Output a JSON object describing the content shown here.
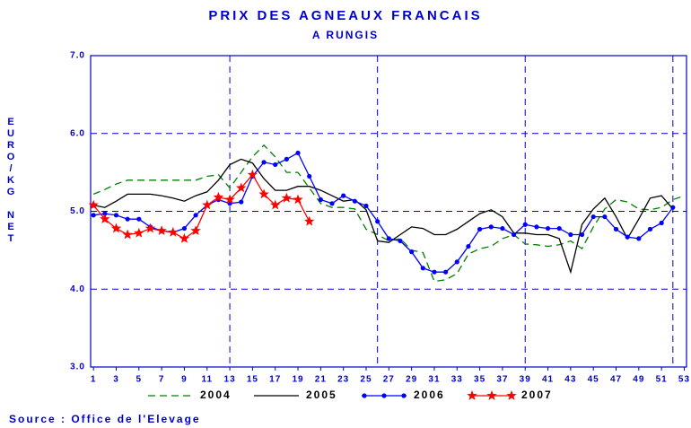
{
  "chart_data": {
    "type": "line",
    "title": "PRIX DES AGNEAUX FRANCAIS",
    "subtitle": "A RUNGIS",
    "y_label": "EURO/KG NET",
    "source": "Source : Office de l'Elevage",
    "x": [
      1,
      2,
      3,
      4,
      5,
      6,
      7,
      8,
      9,
      10,
      11,
      12,
      13,
      14,
      15,
      16,
      17,
      18,
      19,
      20,
      21,
      22,
      23,
      24,
      25,
      26,
      27,
      28,
      29,
      30,
      31,
      32,
      33,
      34,
      35,
      36,
      37,
      38,
      39,
      40,
      41,
      42,
      43,
      44,
      45,
      46,
      47,
      48,
      49,
      50,
      51,
      52,
      53
    ],
    "xlim": [
      0.75,
      53.2
    ],
    "xticks": [
      1,
      3,
      5,
      7,
      9,
      11,
      13,
      15,
      17,
      19,
      21,
      23,
      25,
      27,
      29,
      31,
      33,
      35,
      37,
      39,
      41,
      43,
      45,
      47,
      49,
      51,
      53
    ],
    "xgrid": [
      13,
      26,
      39,
      52
    ],
    "ylim": [
      3,
      7
    ],
    "yticks": [
      {
        "value": 3,
        "label": "3.0"
      },
      {
        "value": 4,
        "label": "4.0"
      },
      {
        "value": 5,
        "label": "5.0"
      },
      {
        "value": 6,
        "label": "6.0"
      },
      {
        "value": 7,
        "label": "7.0"
      }
    ],
    "grid": true,
    "series": [
      {
        "name": "2004",
        "color": "#008000",
        "dash": true,
        "marker": null,
        "values": [
          5.22,
          5.28,
          5.35,
          5.4,
          5.4,
          5.4,
          5.4,
          5.4,
          5.4,
          5.4,
          5.45,
          5.47,
          5.3,
          5.5,
          5.7,
          5.85,
          5.7,
          5.5,
          5.5,
          5.3,
          5.1,
          5.05,
          5.05,
          5.03,
          4.77,
          4.7,
          4.62,
          4.65,
          4.5,
          4.47,
          4.1,
          4.12,
          4.2,
          4.45,
          4.52,
          4.55,
          4.65,
          4.7,
          4.58,
          4.57,
          4.55,
          4.57,
          4.62,
          4.52,
          4.8,
          5.03,
          5.15,
          5.12,
          5.03,
          5.02,
          5.05,
          5.15,
          5.2
        ]
      },
      {
        "name": "2005",
        "color": "#000000",
        "dash": false,
        "marker": null,
        "values": [
          5.08,
          5.05,
          5.13,
          5.22,
          5.22,
          5.22,
          5.2,
          5.17,
          5.13,
          5.2,
          5.25,
          5.4,
          5.6,
          5.67,
          5.62,
          5.42,
          5.27,
          5.27,
          5.32,
          5.32,
          5.27,
          5.2,
          5.13,
          5.15,
          5.02,
          4.62,
          4.6,
          4.7,
          4.8,
          4.78,
          4.7,
          4.7,
          4.77,
          4.87,
          4.97,
          5.02,
          4.93,
          4.72,
          4.72,
          4.7,
          4.7,
          4.65,
          4.22,
          4.83,
          5.03,
          5.17,
          4.93,
          4.65,
          4.9,
          5.17,
          5.2,
          5.03,
          null
        ]
      },
      {
        "name": "2006",
        "color": "#0000ff",
        "dash": false,
        "marker": "circle",
        "values": [
          4.95,
          4.97,
          4.95,
          4.9,
          4.9,
          4.8,
          4.75,
          4.73,
          4.78,
          4.95,
          5.08,
          5.15,
          5.1,
          5.12,
          5.45,
          5.63,
          5.6,
          5.67,
          5.75,
          5.45,
          5.15,
          5.1,
          5.2,
          5.13,
          5.07,
          4.87,
          4.65,
          4.62,
          4.48,
          4.27,
          4.22,
          4.22,
          4.35,
          4.55,
          4.77,
          4.8,
          4.78,
          4.7,
          4.83,
          4.8,
          4.78,
          4.78,
          4.7,
          4.7,
          4.93,
          4.93,
          4.77,
          4.67,
          4.65,
          4.77,
          4.85,
          5.05,
          null
        ]
      },
      {
        "name": "2007",
        "color": "#ff0000",
        "dash": false,
        "marker": "star",
        "values": [
          5.08,
          4.9,
          4.78,
          4.7,
          4.72,
          4.78,
          4.75,
          4.73,
          4.65,
          4.75,
          5.08,
          5.18,
          5.15,
          5.3,
          5.47,
          5.22,
          5.08,
          5.17,
          5.15,
          4.87,
          null,
          null,
          null,
          null,
          null,
          null,
          null,
          null,
          null,
          null,
          null,
          null,
          null,
          null,
          null,
          null,
          null,
          null,
          null,
          null,
          null,
          null,
          null,
          null,
          null,
          null,
          null,
          null,
          null,
          null,
          null,
          null,
          null
        ]
      }
    ]
  }
}
